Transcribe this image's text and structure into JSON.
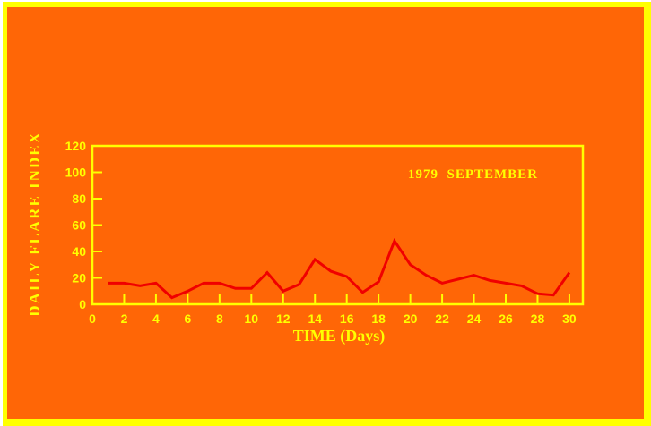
{
  "colors": {
    "background": "#FF6606",
    "border": "#FFFF00",
    "edge_artifact": "#FFFFFF",
    "axis": "#FFFF00",
    "text": "#FFFF00",
    "line": "#F00000"
  },
  "annotation": "1979  SEPTEMBER",
  "chart_data": {
    "type": "line",
    "title": "1979 SEPTEMBER",
    "xlabel": "TIME (Days)",
    "ylabel": "DAILY FLARE INDEX",
    "x": [
      1,
      2,
      3,
      4,
      5,
      6,
      7,
      8,
      9,
      10,
      11,
      12,
      13,
      14,
      15,
      16,
      17,
      18,
      19,
      20,
      21,
      22,
      23,
      24,
      25,
      26,
      27,
      28,
      29,
      30
    ],
    "values": [
      16,
      16,
      14,
      16,
      5,
      10,
      16,
      16,
      12,
      12,
      24,
      10,
      15,
      34,
      25,
      21,
      9,
      17,
      48,
      30,
      22,
      16,
      19,
      22,
      18,
      16,
      14,
      8,
      7,
      24
    ],
    "x_ticks": [
      0,
      2,
      4,
      6,
      8,
      10,
      12,
      14,
      16,
      18,
      20,
      22,
      24,
      26,
      28,
      30
    ],
    "y_ticks": [
      0,
      20,
      40,
      60,
      80,
      100,
      120
    ],
    "xlim": [
      0,
      30.85
    ],
    "ylim": [
      0,
      120
    ],
    "grid": false,
    "legend_position": "none",
    "line_color": "#F00000",
    "axis_color": "#FFFF00",
    "label_color": "#FFFF00"
  }
}
